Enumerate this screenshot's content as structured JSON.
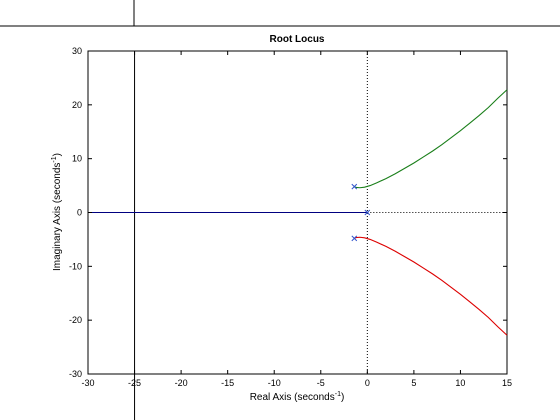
{
  "chart_data": {
    "type": "line",
    "title": "Root Locus",
    "xlabel": {
      "pre": "Real Axis (seconds",
      "sup": "-1",
      "post": ")"
    },
    "ylabel": {
      "pre": "Imaginary Axis (seconds",
      "sup": "-1",
      "post": ")"
    },
    "xlim": [
      -30,
      15
    ],
    "ylim": [
      -30,
      30
    ],
    "xticks": [
      -30,
      -25,
      -20,
      -15,
      -10,
      -5,
      0,
      5,
      10,
      15
    ],
    "yticks": [
      -30,
      -20,
      -10,
      0,
      10,
      20,
      30
    ],
    "xtick_labels": [
      "-30",
      "-25",
      "-20",
      "-15",
      "-10",
      "-5",
      "0",
      "5",
      "10",
      "15"
    ],
    "ytick_labels": [
      "-30",
      "-20",
      "-10",
      "0",
      "10",
      "20",
      "30"
    ],
    "grid": false,
    "crosshair": {
      "x": -25,
      "color": "#000000"
    },
    "reference_lines": {
      "real_axis_y": 0,
      "imag_axis_x": 0,
      "style": "dotted"
    },
    "poles": [
      {
        "x": -1.4,
        "y": 4.8
      },
      {
        "x": -1.4,
        "y": -4.8
      },
      {
        "x": 0,
        "y": 0
      }
    ],
    "series": [
      {
        "color": "#1a7f1a",
        "x": [
          -1.4,
          -1.2,
          -0.8,
          -0.3,
          0.3,
          1.0,
          2.0,
          3.0,
          4.0,
          5.0,
          6.0,
          7.0,
          8.0,
          9.0,
          10.0,
          11.0,
          12.0,
          13.0,
          14.0,
          15.0
        ],
        "y": [
          4.8,
          4.65,
          4.6,
          4.7,
          5.0,
          5.5,
          6.3,
          7.2,
          8.2,
          9.2,
          10.3,
          11.4,
          12.6,
          13.9,
          15.2,
          16.6,
          18.0,
          19.5,
          21.2,
          22.8
        ]
      },
      {
        "color": "#dd0000",
        "x": [
          -1.4,
          -1.2,
          -0.8,
          -0.3,
          0.3,
          1.0,
          2.0,
          3.0,
          4.0,
          5.0,
          6.0,
          7.0,
          8.0,
          9.0,
          10.0,
          11.0,
          12.0,
          13.0,
          14.0,
          15.0
        ],
        "y": [
          -4.8,
          -4.65,
          -4.6,
          -4.7,
          -5.0,
          -5.5,
          -6.3,
          -7.2,
          -8.2,
          -9.2,
          -10.3,
          -11.4,
          -12.6,
          -13.9,
          -15.2,
          -16.6,
          -18.0,
          -19.5,
          -21.2,
          -22.8
        ]
      },
      {
        "color": "#000080",
        "x": [
          -30,
          0
        ],
        "y": [
          0,
          0
        ]
      }
    ],
    "pole_marker_color": "#3355cc"
  }
}
